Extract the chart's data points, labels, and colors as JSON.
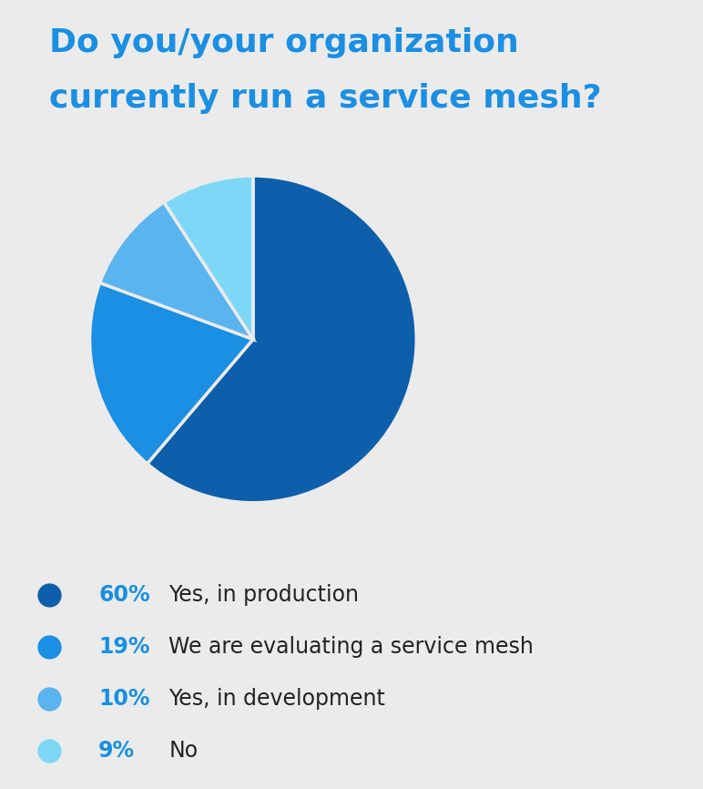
{
  "title_line1": "Do you/your organization",
  "title_line2": "currently run a service mesh?",
  "title_color": "#1a8fe3",
  "background_color": "#ebebeb",
  "slices": [
    60,
    19,
    10,
    9
  ],
  "labels": [
    "Yes, in production",
    "We are evaluating a service mesh",
    "Yes, in development",
    "No"
  ],
  "pct_labels": [
    "60%",
    "19%",
    "10%",
    "9%"
  ],
  "colors": [
    "#0d5fab",
    "#1a8fe3",
    "#5ab4f0",
    "#7dd8f7"
  ],
  "pct_fontsize": 17,
  "label_fontsize": 17,
  "startangle": 90
}
